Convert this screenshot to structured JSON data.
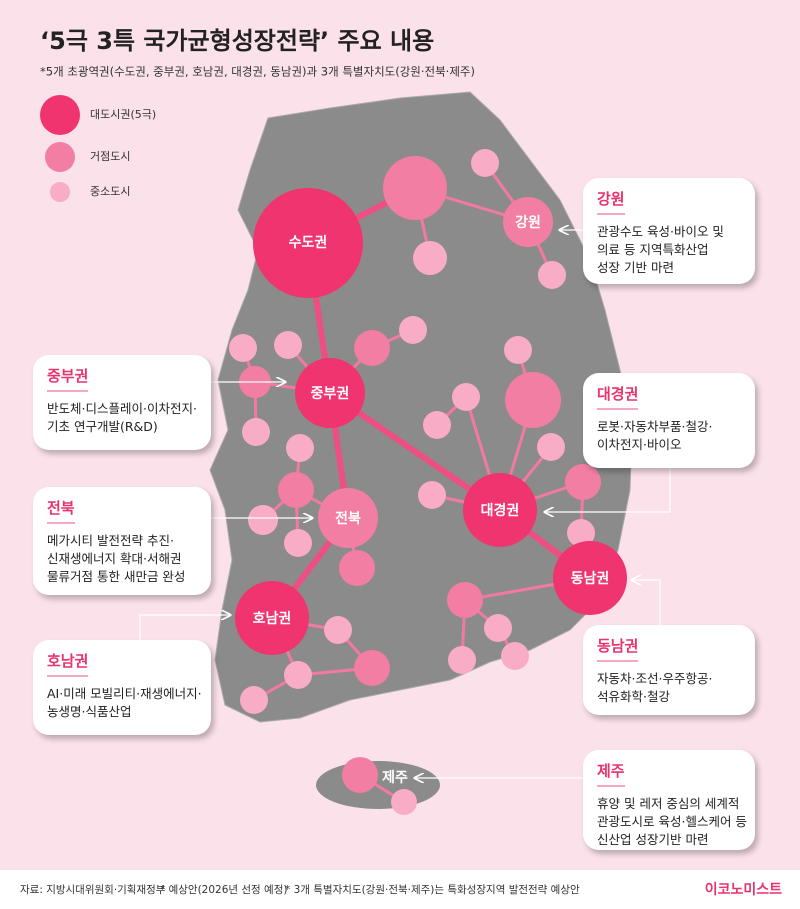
{
  "header": {
    "title": "‘5극 3특 국가균형성장전략’ 주요 내용",
    "subtitle": "*5개 초광역권(수도권, 중부권, 호남권, 대경권, 동남권)과 3개 특별자치도(강원·전북·제주)"
  },
  "legend": [
    "대도시권(5극)",
    "거점도시",
    "중소도시"
  ],
  "hubs": [
    "수도권",
    "강원",
    "중부권",
    "전북",
    "대경권",
    "동남권",
    "호남권",
    "제주"
  ],
  "callouts": [
    {
      "title": "강원",
      "lines": [
        "관광수도 육성·바이오 및",
        "의료 등 지역특화산업",
        "성장 기반 마련"
      ]
    },
    {
      "title": "중부권",
      "lines": [
        "반도체·디스플레이·이차전지·",
        "기초 연구개발(R&D)"
      ]
    },
    {
      "title": "대경권",
      "lines": [
        "로봇·자동차부품·철강·",
        "이차전지·바이오"
      ]
    },
    {
      "title": "전북",
      "lines": [
        "메가시티 발전전략 추진·",
        "신재생에너지 확대·서해권",
        "물류거점 통한 새만금 완성"
      ]
    },
    {
      "title": "동남권",
      "lines": [
        "자동차·조선·우주항공·",
        "석유화학·철강"
      ]
    },
    {
      "title": "호남권",
      "lines": [
        "AI·미래 모빌리티·재생에너지·",
        "농생명·식품산업"
      ]
    },
    {
      "title": "제주",
      "lines": [
        "휴양 및 레저 중심의 세계적",
        "관광도시로 육성·헬스케어 등",
        "신산업 성장기반 마련"
      ]
    }
  ],
  "footer": {
    "source": "자료: 지방시대위원회·기획재정부",
    "notes": [
      "* 예상안(2026년 선정 예정)",
      "* 3개 특별자치도(강원·전북·제주)는 특화성장지역 발전전략 예상안"
    ],
    "brand": "이코노미스트"
  }
}
